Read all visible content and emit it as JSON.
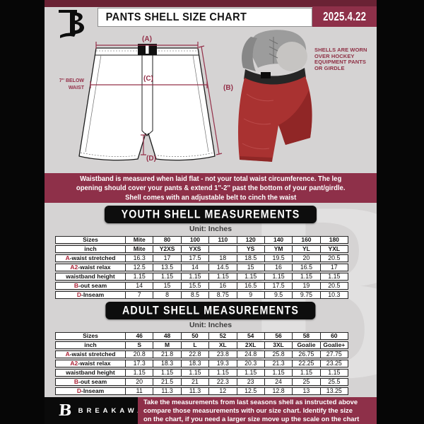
{
  "colors": {
    "wine": "#8e3049",
    "dark_wine_strip": "#6a2234",
    "table_accent_red": "#ab2135",
    "diagram_red": "#943049",
    "page_bg": "#d5d3d3",
    "shell_red": "#a93231",
    "banner_black": "#0d0d0d"
  },
  "header": {
    "logo_letter": "B",
    "title": "PANTS SHELL SIZE CHART",
    "date": "2025.4.22"
  },
  "diagram": {
    "label_a": "(A)",
    "label_b": "(B)",
    "label_c": "(C)",
    "label_d": "(D)",
    "below_waist": [
      "7'' BELOW",
      "WAIST"
    ]
  },
  "shell_note": [
    "SHELLS ARE WORN",
    "OVER HOCKEY",
    "EQUIPMENT PANTS",
    "OR GIRDLE"
  ],
  "notice": [
    "Waistband is measured when laid flat - not your total waist circumference. The leg",
    "opening should cover your pants & extend 1''-2'' past the bottom of your pant/girdle.",
    "Shell comes with an adjustable belt to cinch the waist"
  ],
  "youth": {
    "title": "YOUTH SHELL MEASUREMENTS",
    "unit": "Unit: Inches",
    "rows": [
      {
        "prefix": "",
        "label": "Sizes",
        "header": true,
        "values": [
          "Mite",
          "80",
          "100",
          "110",
          "120",
          "140",
          "160",
          "180"
        ]
      },
      {
        "prefix": "",
        "label": "inch",
        "header": true,
        "values": [
          "Mite",
          "Y2XS",
          "YXS",
          "",
          "YS",
          "YM",
          "YL",
          "YXL"
        ]
      },
      {
        "prefix": "A",
        "label": "-waist stretched",
        "header": false,
        "values": [
          "16.3",
          "17",
          "17.5",
          "18",
          "18.5",
          "19.5",
          "20",
          "20.5"
        ]
      },
      {
        "prefix": "A2",
        "label": "-waist relax",
        "header": false,
        "values": [
          "12.5",
          "13.5",
          "14",
          "14.5",
          "15",
          "16",
          "16.5",
          "17"
        ]
      },
      {
        "prefix": "",
        "label": "waistband height",
        "header": false,
        "values": [
          "1.15",
          "1.15",
          "1.15",
          "1.15",
          "1.15",
          "1.15",
          "1.15",
          "1.15"
        ]
      },
      {
        "prefix": "B",
        "label": "-out seam",
        "header": false,
        "values": [
          "14",
          "15",
          "15.5",
          "16",
          "16.5",
          "17.5",
          "19",
          "20.5"
        ]
      },
      {
        "prefix": "D",
        "label": "-Inseam",
        "header": false,
        "values": [
          "7",
          "8",
          "8.5",
          "8.75",
          "9",
          "9.5",
          "9.75",
          "10.3"
        ]
      }
    ]
  },
  "adult": {
    "title": "ADULT SHELL MEASUREMENTS",
    "unit": "Unit: Inches",
    "rows": [
      {
        "prefix": "",
        "label": "Sizes",
        "header": true,
        "values": [
          "46",
          "48",
          "50",
          "52",
          "54",
          "56",
          "58",
          "60"
        ]
      },
      {
        "prefix": "",
        "label": "inch",
        "header": true,
        "values": [
          "S",
          "M",
          "L",
          "XL",
          "2XL",
          "3XL",
          "Goalie",
          "Goalie+"
        ]
      },
      {
        "prefix": "A",
        "label": "-waist stretched",
        "header": false,
        "values": [
          "20.8",
          "21.8",
          "22.8",
          "23.8",
          "24.8",
          "25.8",
          "26.75",
          "27.75"
        ]
      },
      {
        "prefix": "A2",
        "label": "-waist relax",
        "header": false,
        "values": [
          "17.3",
          "18.3",
          "18.3",
          "19.3",
          "20.3",
          "21.3",
          "22.25",
          "23.25"
        ]
      },
      {
        "prefix": "",
        "label": "waistband height",
        "header": false,
        "values": [
          "1.15",
          "1.15",
          "1.15",
          "1.15",
          "1.15",
          "1.15",
          "1.15",
          "1.15"
        ]
      },
      {
        "prefix": "B",
        "label": "-out seam",
        "header": false,
        "values": [
          "20",
          "21.5",
          "21",
          "22.3",
          "23",
          "24",
          "25",
          "25.5"
        ]
      },
      {
        "prefix": "D",
        "label": "-Inseam",
        "header": false,
        "values": [
          "11",
          "11.3",
          "11.3",
          "12",
          "12.5",
          "12.8",
          "13",
          "13.25"
        ]
      }
    ]
  },
  "footer": {
    "logo_letter": "B",
    "brand": "BREAKAWAY",
    "note": [
      "Take the measurements from last seasons shell as instructed above",
      "compare those measurements  with our size chart. Identify the size",
      "on the chart, if you need a larger size move up the scale on the chart"
    ]
  }
}
